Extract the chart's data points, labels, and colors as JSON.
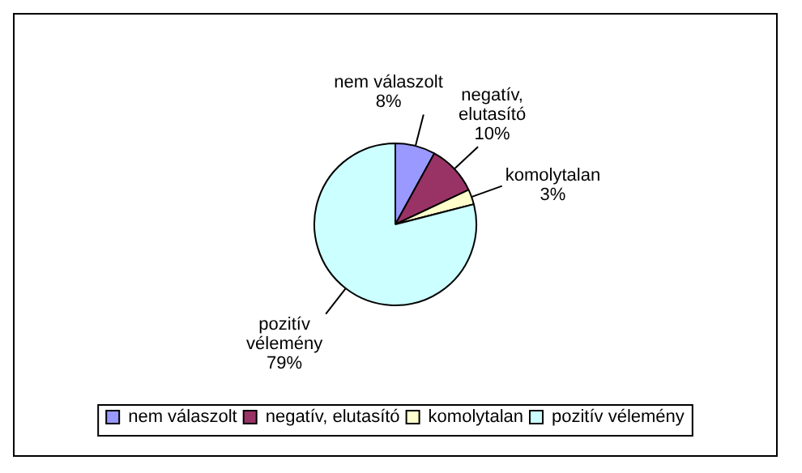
{
  "chart_data": {
    "type": "pie",
    "categories": [
      "nem válaszolt",
      "negatív, elutasító",
      "komolytalan",
      "pozitív vélemény"
    ],
    "values": [
      8,
      10,
      3,
      79
    ],
    "colors": [
      "#9999ff",
      "#993366",
      "#ffffcc",
      "#ccffff"
    ],
    "value_labels": [
      "8%",
      "10%",
      "3%",
      "79%"
    ],
    "legend": "bottom"
  }
}
